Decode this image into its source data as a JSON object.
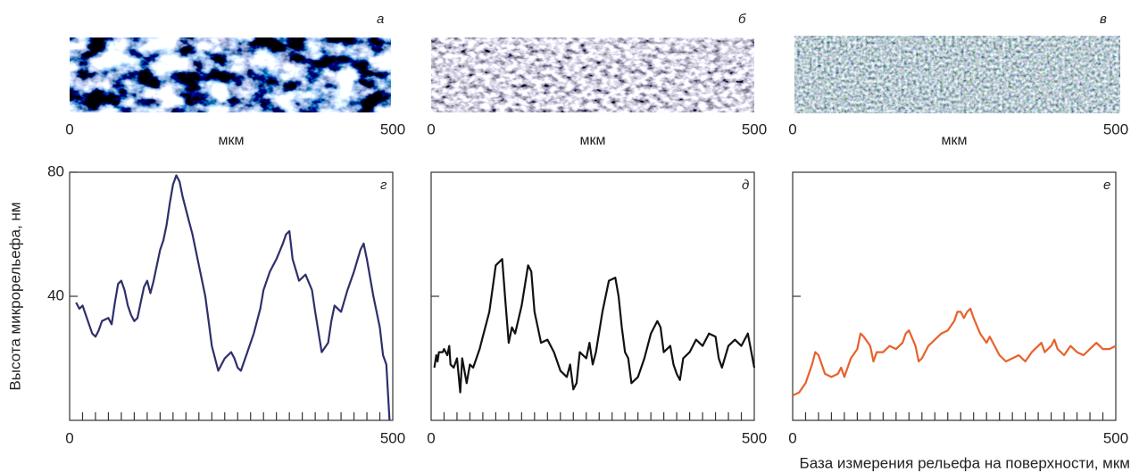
{
  "images": [
    {
      "label": "а",
      "xlim": [
        0,
        500
      ],
      "xticks": [
        0,
        500
      ],
      "xlabel": "мкм"
    },
    {
      "label": "б",
      "xlim": [
        0,
        500
      ],
      "xticks": [
        0,
        500
      ],
      "xlabel": "мкм"
    },
    {
      "label": "в",
      "xlim": [
        0,
        500
      ],
      "xticks": [
        0,
        500
      ],
      "xlabel": "мкм"
    }
  ],
  "xlabel": "База измерения рельефа на поверхности, мкм",
  "chart_data": [
    {
      "type": "line",
      "label": "г",
      "ylabel": "Высота микрорельефа, нм",
      "color": "#2e2f6b",
      "xlim": [
        0,
        500
      ],
      "xticks": [
        0,
        500
      ],
      "xminor_ticks": [
        20,
        40,
        60,
        80,
        100,
        120,
        140,
        160,
        180,
        200,
        220,
        240,
        260,
        280,
        300,
        320,
        340,
        360,
        380,
        400,
        420,
        440,
        460,
        480
      ],
      "ylim": [
        0,
        80
      ],
      "yticks": [
        40,
        80
      ],
      "x": [
        10,
        15,
        20,
        30,
        35,
        40,
        45,
        50,
        60,
        65,
        70,
        75,
        80,
        85,
        90,
        95,
        100,
        105,
        110,
        115,
        120,
        125,
        130,
        135,
        140,
        145,
        150,
        155,
        160,
        165,
        170,
        175,
        180,
        185,
        190,
        200,
        210,
        215,
        220,
        225,
        230,
        240,
        250,
        255,
        260,
        265,
        275,
        285,
        295,
        300,
        310,
        320,
        330,
        335,
        340,
        345,
        355,
        365,
        375,
        380,
        390,
        400,
        405,
        410,
        420,
        430,
        440,
        450,
        455,
        460,
        470,
        480,
        485,
        490,
        495
      ],
      "values": [
        38,
        36,
        37,
        31,
        28,
        27,
        29,
        32,
        33,
        31,
        38,
        44,
        45,
        42,
        37,
        34,
        32,
        33,
        38,
        43,
        45,
        41,
        45,
        50,
        55,
        58,
        63,
        70,
        76,
        79,
        77,
        72,
        68,
        64,
        60,
        50,
        40,
        32,
        24,
        20,
        16,
        20,
        22,
        20,
        17,
        16,
        22,
        28,
        36,
        42,
        48,
        52,
        57,
        60,
        61,
        52,
        45,
        47,
        42,
        35,
        22,
        25,
        32,
        37,
        35,
        42,
        48,
        55,
        57,
        52,
        40,
        30,
        21,
        18,
        0
      ]
    },
    {
      "type": "line",
      "label": "д",
      "color": "#111111",
      "xlim": [
        0,
        500
      ],
      "xticks": [
        0,
        500
      ],
      "xminor_ticks": [
        20,
        40,
        60,
        80,
        100,
        120,
        140,
        160,
        180,
        200,
        220,
        240,
        260,
        280,
        300,
        320,
        340,
        360,
        380,
        400,
        420,
        440,
        460,
        480
      ],
      "ylim": [
        0,
        80
      ],
      "yminor_ticks": [
        40
      ],
      "x": [
        5,
        8,
        10,
        12,
        18,
        20,
        25,
        28,
        30,
        35,
        40,
        45,
        48,
        55,
        60,
        65,
        75,
        80,
        90,
        100,
        110,
        115,
        120,
        125,
        130,
        140,
        150,
        155,
        160,
        165,
        170,
        180,
        190,
        200,
        210,
        215,
        220,
        225,
        230,
        240,
        245,
        250,
        255,
        265,
        275,
        285,
        290,
        295,
        300,
        305,
        310,
        320,
        330,
        340,
        350,
        355,
        360,
        370,
        375,
        380,
        385,
        390,
        400,
        410,
        420,
        430,
        440,
        445,
        450,
        460,
        470,
        480,
        490,
        500
      ],
      "values": [
        17,
        21,
        19,
        22,
        22,
        23,
        21,
        24,
        18,
        17,
        20,
        9,
        20,
        12,
        18,
        17,
        23,
        27,
        35,
        50,
        52,
        38,
        25,
        30,
        28,
        37,
        50,
        48,
        35,
        30,
        25,
        26,
        22,
        16,
        14,
        18,
        10,
        12,
        22,
        20,
        25,
        18,
        22,
        35,
        45,
        46,
        40,
        30,
        22,
        20,
        12,
        14,
        20,
        28,
        32,
        30,
        22,
        24,
        18,
        15,
        13,
        20,
        22,
        26,
        24,
        28,
        27,
        20,
        17,
        24,
        26,
        24,
        28,
        17
      ]
    },
    {
      "type": "line",
      "label": "е",
      "color": "#e8612c",
      "xlim": [
        0,
        500
      ],
      "xticks": [
        0,
        500
      ],
      "xminor_ticks": [
        20,
        40,
        60,
        80,
        100,
        120,
        140,
        160,
        180,
        200,
        220,
        240,
        260,
        280,
        300,
        320,
        340,
        360,
        380,
        400,
        420,
        440,
        460,
        480
      ],
      "ylim": [
        0,
        80
      ],
      "yminor_ticks": [
        40
      ],
      "x": [
        0,
        10,
        20,
        30,
        35,
        40,
        50,
        60,
        70,
        75,
        80,
        90,
        100,
        105,
        110,
        120,
        125,
        130,
        140,
        150,
        160,
        170,
        175,
        180,
        190,
        195,
        200,
        210,
        220,
        230,
        240,
        250,
        255,
        260,
        265,
        270,
        275,
        280,
        290,
        300,
        305,
        310,
        320,
        330,
        340,
        350,
        360,
        370,
        380,
        385,
        390,
        400,
        405,
        410,
        420,
        430,
        440,
        450,
        460,
        470,
        480,
        490,
        500
      ],
      "values": [
        8,
        9,
        12,
        18,
        22,
        21,
        15,
        14,
        15,
        17,
        14,
        20,
        23,
        28,
        27,
        24,
        19,
        22,
        22,
        24,
        23,
        25,
        28,
        29,
        24,
        19,
        20,
        24,
        26,
        28,
        29,
        32,
        35,
        35,
        33,
        35,
        36,
        33,
        28,
        25,
        27,
        25,
        21,
        19,
        20,
        21,
        19,
        22,
        24,
        25,
        22,
        24,
        26,
        23,
        21,
        24,
        22,
        21,
        23,
        25,
        23,
        23,
        24
      ]
    }
  ]
}
